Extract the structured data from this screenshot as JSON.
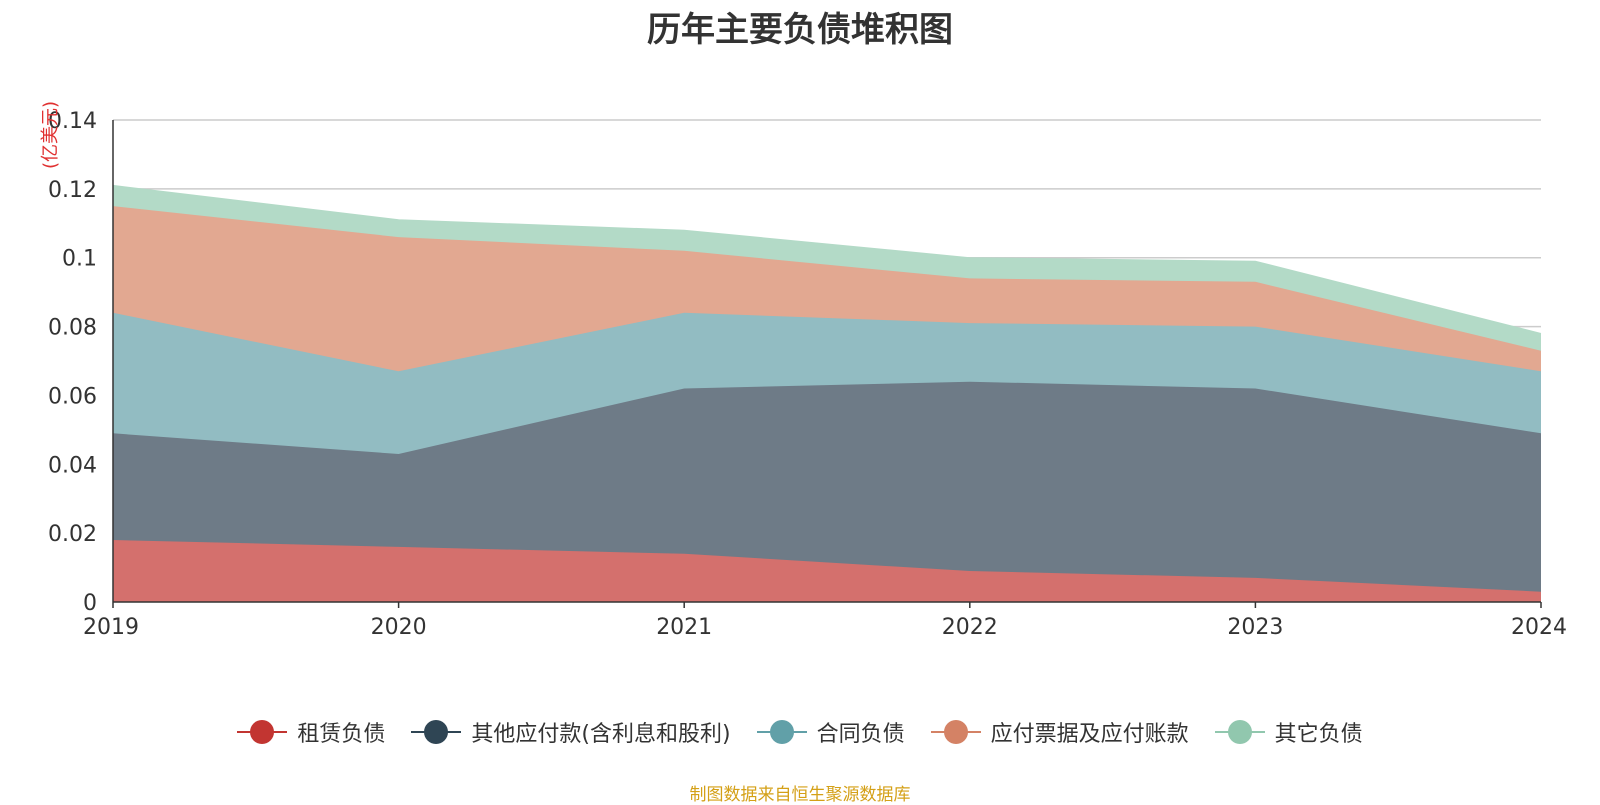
{
  "chart_data": {
    "type": "area",
    "stacked": true,
    "title": "历年主要负债堆积图",
    "y_unit": "(亿美元)",
    "x": [
      "2019",
      "2020",
      "2021",
      "2022",
      "2023",
      "2024"
    ],
    "ylim": [
      0,
      0.14
    ],
    "yticks": [
      "0",
      "0.02",
      "0.04",
      "0.06",
      "0.08",
      "0.1",
      "0.12",
      "0.14"
    ],
    "grid": true,
    "legend_position": "bottom",
    "series": [
      {
        "name": "租赁负债",
        "color": "#c23531",
        "fill": "#d4706d",
        "values": [
          0.018,
          0.016,
          0.014,
          0.009,
          0.007,
          0.003
        ]
      },
      {
        "name": "其他应付款(含利息和股利)",
        "color": "#2f4554",
        "fill": "#6e7b87",
        "values": [
          0.031,
          0.027,
          0.048,
          0.055,
          0.055,
          0.046
        ]
      },
      {
        "name": "合同负债",
        "color": "#61a0a8",
        "fill": "#92bcc2",
        "values": [
          0.035,
          0.024,
          0.022,
          0.017,
          0.018,
          0.018
        ]
      },
      {
        "name": "应付票据及应付账款",
        "color": "#d48265",
        "fill": "#e2a891",
        "values": [
          0.031,
          0.039,
          0.018,
          0.013,
          0.013,
          0.006
        ]
      },
      {
        "name": "其它负债",
        "color": "#91c7ae",
        "fill": "#b3dac7",
        "values": [
          0.006,
          0.005,
          0.006,
          0.006,
          0.006,
          0.005
        ]
      }
    ]
  },
  "footer": {
    "source": "制图数据来自恒生聚源数据库"
  }
}
